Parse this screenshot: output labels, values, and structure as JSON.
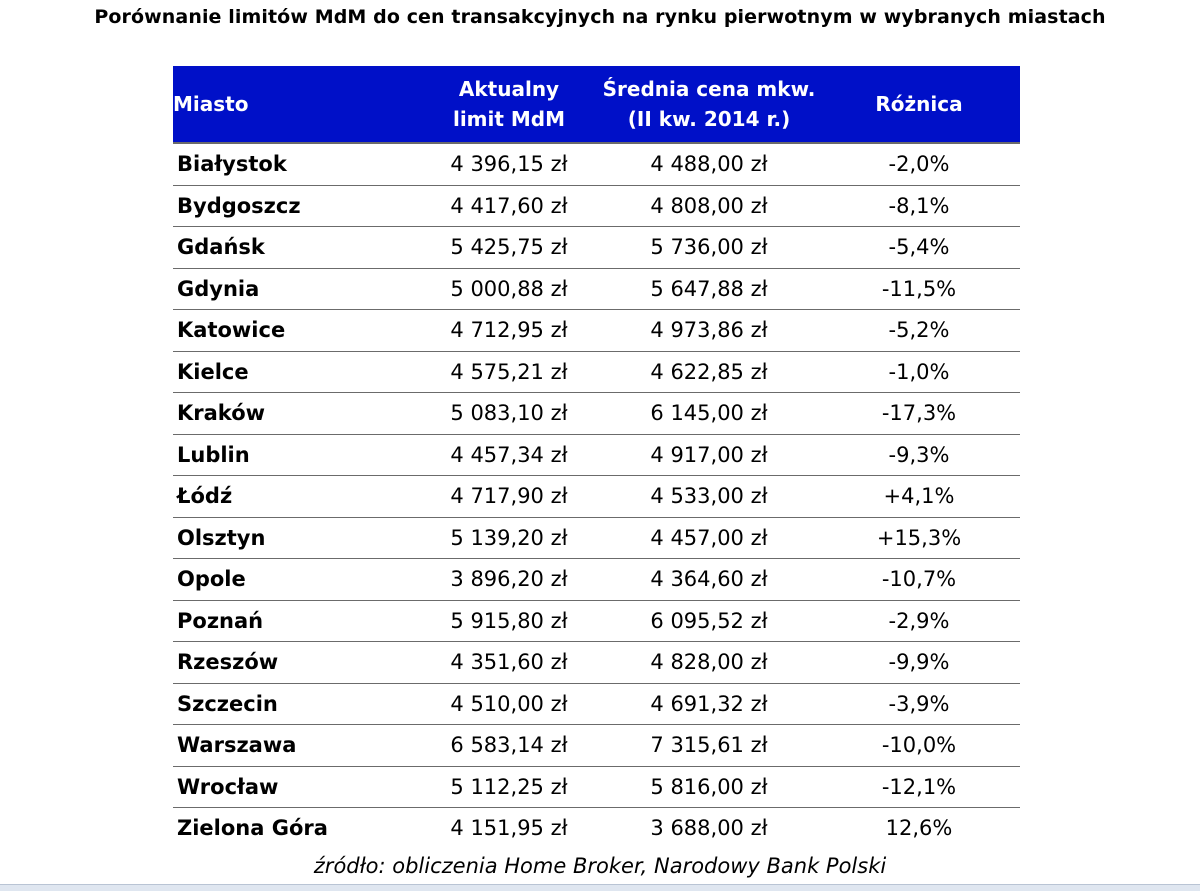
{
  "chart_data": {
    "type": "table",
    "title": "Porównanie limitów  MdM do cen transakcyjnych na rynku pierwotnym w wybranych miastach",
    "header_color": "#0010c8",
    "columns": [
      {
        "lines": [
          "Miasto"
        ]
      },
      {
        "lines": [
          "Aktualny",
          "limit MdM"
        ]
      },
      {
        "lines": [
          "Średnia cena mkw.",
          "(II kw. 2014 r.)"
        ]
      },
      {
        "lines": [
          "Różnica"
        ]
      }
    ],
    "rows": [
      {
        "city": "Białystok",
        "limit": "4 396,15 zł",
        "price": "4 488,00 zł",
        "diff": "-2,0%"
      },
      {
        "city": "Bydgoszcz",
        "limit": "4 417,60 zł",
        "price": "4 808,00 zł",
        "diff": "-8,1%"
      },
      {
        "city": "Gdańsk",
        "limit": "5 425,75 zł",
        "price": "5 736,00 zł",
        "diff": "-5,4%"
      },
      {
        "city": "Gdynia",
        "limit": "5 000,88 zł",
        "price": "5 647,88 zł",
        "diff": "-11,5%"
      },
      {
        "city": "Katowice",
        "limit": "4 712,95 zł",
        "price": "4 973,86 zł",
        "diff": "-5,2%"
      },
      {
        "city": "Kielce",
        "limit": "4 575,21 zł",
        "price": "4 622,85 zł",
        "diff": "-1,0%"
      },
      {
        "city": "Kraków",
        "limit": "5 083,10 zł",
        "price": "6 145,00 zł",
        "diff": "-17,3%"
      },
      {
        "city": "Lublin",
        "limit": "4 457,34 zł",
        "price": "4 917,00 zł",
        "diff": "-9,3%"
      },
      {
        "city": "Łódź",
        "limit": "4 717,90 zł",
        "price": "4 533,00 zł",
        "diff": "+4,1%"
      },
      {
        "city": "Olsztyn",
        "limit": "5 139,20 zł",
        "price": "4 457,00 zł",
        "diff": "+15,3%"
      },
      {
        "city": "Opole",
        "limit": "3 896,20 zł",
        "price": "4 364,60 zł",
        "diff": "-10,7%"
      },
      {
        "city": "Poznań",
        "limit": "5 915,80 zł",
        "price": "6 095,52 zł",
        "diff": "-2,9%"
      },
      {
        "city": "Rzeszów",
        "limit": "4 351,60 zł",
        "price": "4 828,00 zł",
        "diff": "-9,9%"
      },
      {
        "city": "Szczecin",
        "limit": "4 510,00 zł",
        "price": "4 691,32 zł",
        "diff": "-3,9%"
      },
      {
        "city": "Warszawa",
        "limit": "6 583,14 zł",
        "price": "7 315,61 zł",
        "diff": "-10,0%"
      },
      {
        "city": "Wrocław",
        "limit": "5 112,25 zł",
        "price": "5 816,00 zł",
        "diff": "-12,1%"
      },
      {
        "city": "Zielona Góra",
        "limit": "4 151,95 zł",
        "price": "3 688,00 zł",
        "diff": "12,6%"
      }
    ],
    "source": "źródło: obliczenia Home Broker, Narodowy Bank Polski"
  }
}
